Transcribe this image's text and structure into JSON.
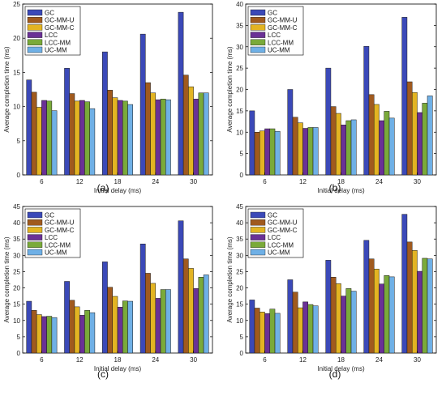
{
  "colors": {
    "GC": "#3b49b8",
    "GC-MM-U": "#a05a1e",
    "GC-MM-C": "#e3b422",
    "LCC": "#6a3196",
    "LCC-MM": "#7aaa3a",
    "UC-MM": "#6fb0e6"
  },
  "chart_data": [
    {
      "type": "bar",
      "caption": "(a)",
      "xlabel": "Initial delay (ms)",
      "ylabel": "Average completion time (ms)",
      "ylim": [
        0,
        25
      ],
      "yticks": [
        0,
        5,
        10,
        15,
        20,
        25
      ],
      "grid": false,
      "legend": "top-left",
      "categories": [
        "6",
        "12",
        "18",
        "24",
        "30"
      ],
      "series": [
        {
          "name": "GC",
          "values": [
            13.9,
            15.6,
            18.0,
            20.6,
            23.8
          ]
        },
        {
          "name": "GC-MM-U",
          "values": [
            12.1,
            11.9,
            12.4,
            13.5,
            14.6
          ]
        },
        {
          "name": "GC-MM-C",
          "values": [
            9.9,
            10.8,
            11.3,
            12.0,
            12.9
          ]
        },
        {
          "name": "LCC",
          "values": [
            10.9,
            10.9,
            10.9,
            11.0,
            11.1
          ]
        },
        {
          "name": "LCC-MM",
          "values": [
            10.8,
            10.7,
            10.8,
            11.1,
            12.0
          ]
        },
        {
          "name": "UC-MM",
          "values": [
            9.4,
            9.7,
            10.3,
            11.0,
            12.0
          ]
        }
      ]
    },
    {
      "type": "bar",
      "caption": "(b)",
      "xlabel": "Initial delay (ms)",
      "ylabel": "Average completion time (ms)",
      "ylim": [
        0,
        40
      ],
      "yticks": [
        0,
        5,
        10,
        15,
        20,
        25,
        30,
        35,
        40
      ],
      "grid": false,
      "legend": "top-left",
      "categories": [
        "6",
        "12",
        "18",
        "24",
        "30"
      ],
      "series": [
        {
          "name": "GC",
          "values": [
            15.0,
            20.0,
            25.0,
            30.1,
            36.9
          ]
        },
        {
          "name": "GC-MM-U",
          "values": [
            10.0,
            13.5,
            16.0,
            18.8,
            21.8
          ]
        },
        {
          "name": "GC-MM-C",
          "values": [
            10.3,
            12.2,
            14.4,
            16.5,
            19.3
          ]
        },
        {
          "name": "LCC",
          "values": [
            10.8,
            10.9,
            11.7,
            12.7,
            14.6
          ]
        },
        {
          "name": "LCC-MM",
          "values": [
            10.8,
            11.1,
            12.7,
            14.9,
            16.8
          ]
        },
        {
          "name": "UC-MM",
          "values": [
            10.2,
            11.1,
            12.9,
            13.3,
            18.5
          ]
        }
      ]
    },
    {
      "type": "bar",
      "caption": "(c)",
      "xlabel": "Initial delay (ms)",
      "ylabel": "Average completion time (ms)",
      "ylim": [
        0,
        45
      ],
      "yticks": [
        0,
        5,
        10,
        15,
        20,
        25,
        30,
        35,
        40,
        45
      ],
      "grid": false,
      "legend": "top-left",
      "categories": [
        "6",
        "12",
        "18",
        "24",
        "30"
      ],
      "series": [
        {
          "name": "GC",
          "values": [
            15.9,
            22.0,
            28.0,
            33.5,
            40.6
          ]
        },
        {
          "name": "GC-MM-U",
          "values": [
            13.1,
            16.2,
            20.2,
            24.5,
            28.9
          ]
        },
        {
          "name": "GC-MM-C",
          "values": [
            11.8,
            14.2,
            17.4,
            21.4,
            26.0
          ]
        },
        {
          "name": "LCC",
          "values": [
            11.2,
            11.6,
            14.1,
            16.8,
            19.8
          ]
        },
        {
          "name": "LCC-MM",
          "values": [
            11.3,
            13.1,
            16.0,
            19.5,
            23.3
          ]
        },
        {
          "name": "UC-MM",
          "values": [
            10.9,
            12.4,
            15.9,
            19.5,
            24.0
          ]
        }
      ]
    },
    {
      "type": "bar",
      "caption": "(d)",
      "xlabel": "Initial delay (ms)",
      "ylabel": "Average completion time (ms)",
      "ylim": [
        0,
        45
      ],
      "yticks": [
        0,
        5,
        10,
        15,
        20,
        25,
        30,
        35,
        40,
        45
      ],
      "grid": false,
      "legend": "top-left",
      "categories": [
        "6",
        "12",
        "18",
        "24",
        "30"
      ],
      "series": [
        {
          "name": "GC",
          "values": [
            16.3,
            22.5,
            28.5,
            34.6,
            42.6
          ]
        },
        {
          "name": "GC-MM-U",
          "values": [
            13.8,
            18.7,
            23.3,
            28.9,
            34.1
          ]
        },
        {
          "name": "GC-MM-C",
          "values": [
            12.6,
            13.9,
            21.3,
            25.8,
            31.5
          ]
        },
        {
          "name": "LCC",
          "values": [
            12.1,
            15.7,
            17.5,
            21.2,
            25.1
          ]
        },
        {
          "name": "LCC-MM",
          "values": [
            13.5,
            14.9,
            19.8,
            23.8,
            29.1
          ]
        },
        {
          "name": "UC-MM",
          "values": [
            12.2,
            14.5,
            19.0,
            23.4,
            28.9
          ]
        }
      ]
    }
  ]
}
